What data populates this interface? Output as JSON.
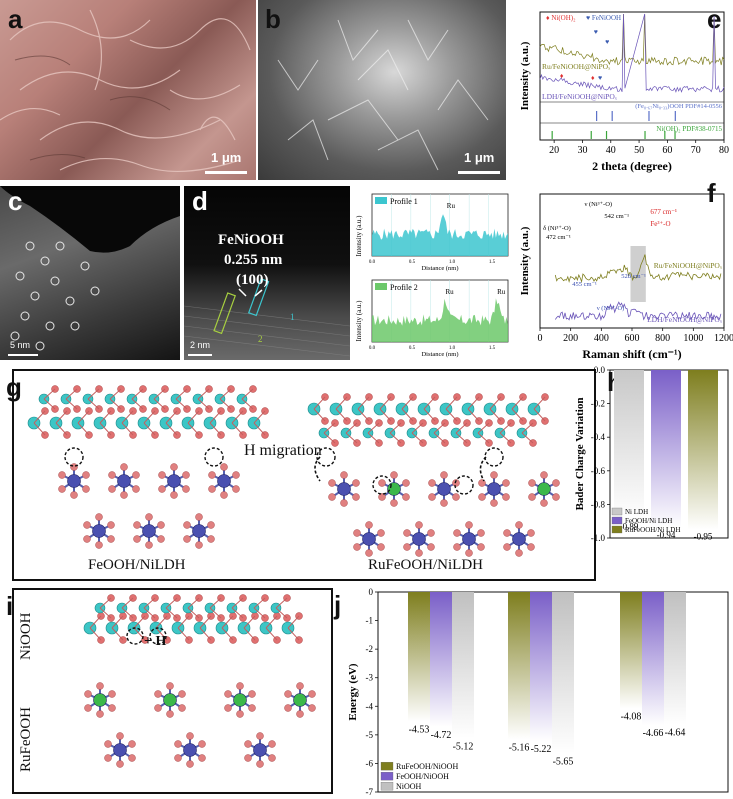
{
  "panels": {
    "a": {
      "label": "a",
      "scale": "1 μm"
    },
    "b": {
      "label": "b",
      "scale": "1 μm"
    },
    "c": {
      "label": "c",
      "scale": "5 nm"
    },
    "d": {
      "label": "d",
      "scale": "2 nm",
      "title": "FeNiOOH",
      "spacing": "0.255 nm",
      "plane": "(100)",
      "marker1": "1",
      "marker2": "2"
    },
    "e": {
      "label": "e"
    },
    "f": {
      "label": "f"
    },
    "g": {
      "label": "g",
      "left_caption": "FeOOH/NiLDH",
      "right_caption": "RuFeOOH/NiLDH",
      "migration": "H migration"
    },
    "h": {
      "label": "h"
    },
    "i": {
      "label": "i",
      "top": "NiOOH",
      "bottom": "RuFeOOH",
      "addH": "+ H"
    },
    "j": {
      "label": "j"
    }
  },
  "chart_data": [
    {
      "id": "profiles",
      "type": "line",
      "series": [
        {
          "name": "Profile 1",
          "color": "#3cc6cf",
          "annotations": [
            "Ru"
          ]
        },
        {
          "name": "Profile 2",
          "color": "#6cc86a",
          "annotations": [
            "Ru",
            "Ru"
          ]
        }
      ],
      "xlabel": "Distance (nm)",
      "ylabel": "Intensity (a.u.)",
      "xticks": [
        "0.0",
        "0.5",
        "1.0",
        "1.5"
      ],
      "xlim": [
        0,
        1.7
      ]
    },
    {
      "id": "xrd",
      "type": "line",
      "xlabel": "2 theta (degree)",
      "ylabel": "Intensity (a.u.)",
      "xlim": [
        15,
        80
      ],
      "xticks": [
        "20",
        "30",
        "40",
        "50",
        "60",
        "70",
        "80"
      ],
      "legend": [
        {
          "symbol": "♦",
          "text": "Ni(OH)₂",
          "color": "#e03030"
        },
        {
          "symbol": "♥",
          "text": "FeNiOOH",
          "color": "#3a5bb0"
        }
      ],
      "series": [
        {
          "name": "Ru/FeNiOOH@NiPOₓ",
          "color": "#7e7e1e"
        },
        {
          "name": "LDH/FeNiOOH@NiPOₓ",
          "color": "#6a55b8"
        }
      ],
      "references": [
        {
          "name": "(Fe₀.₆₇Ni₀.₃₃)OOH PDF#14-0556",
          "color": "#5a70c8",
          "peaks": [
            35.0,
            40.5,
            53.5,
            62.8
          ]
        },
        {
          "name": "Ni(OH)₂ PDF#38-0715",
          "color": "#3aa53a",
          "peaks": [
            19.3,
            33.1,
            38.5,
            52.1,
            59.1,
            62.7
          ]
        }
      ]
    },
    {
      "id": "raman",
      "type": "line",
      "xlabel": "Raman shift (cm⁻¹)",
      "ylabel": "Intensity (a.u.)",
      "xlim": [
        0,
        1200
      ],
      "xticks": [
        "0",
        "200",
        "400",
        "600",
        "800",
        "1000",
        "1200"
      ],
      "series": [
        {
          "name": "Ru/FeNiOOH@NiPOₓ",
          "color": "#7e7e1e"
        },
        {
          "name": "LDH/FeNiOOH@NiPOₓ",
          "color": "#6a55b8"
        }
      ],
      "annotations": {
        "delta": "δ (Ni³⁺-O)",
        "delta_val": "472 cm⁻¹",
        "nu": "ν (Ni³⁺-O)",
        "nu_val": "542 cm⁻¹",
        "fe_val": "677 cm⁻¹",
        "fe": "Fe³⁺-O",
        "l455": "455 cm⁻¹",
        "l528": "528 cm⁻¹",
        "nu2": "ν (Ni²⁺-O)"
      }
    },
    {
      "id": "bader",
      "type": "bar",
      "ylabel": "Bader Charge Variation",
      "ylim": [
        -1.0,
        0.0
      ],
      "yticks": [
        "0.0",
        "-0.2",
        "-0.4",
        "-0.6",
        "-0.8",
        "-1.0"
      ],
      "categories": [
        "Ni LDH",
        "FeOOH/Ni LDH",
        "RuFeOOH/Ni LDH"
      ],
      "values": [
        -0.89,
        -0.94,
        -0.95
      ],
      "labels": [
        "-0.89",
        "-0.94",
        "-0.95"
      ],
      "colors": [
        "#c8c8c8",
        "#7a5fc8",
        "#7e7e1e"
      ]
    },
    {
      "id": "energy",
      "type": "bar",
      "ylabel": "Energy (eV)",
      "ylim": [
        -7,
        0
      ],
      "yticks": [
        "0",
        "-1",
        "-2",
        "-3",
        "-4",
        "-5",
        "-6",
        "-7"
      ],
      "series": [
        {
          "name": "RuFeOOH/NiOOH",
          "color": "#7e7e1e",
          "values": [
            -4.53,
            -5.16,
            -4.08
          ]
        },
        {
          "name": "FeOOH/NiOOH",
          "color": "#7a5fc8",
          "values": [
            -4.72,
            -5.22,
            -4.66
          ]
        },
        {
          "name": "NiOOH",
          "color": "#c0c0c0",
          "values": [
            -5.12,
            -5.65,
            -4.64
          ]
        }
      ],
      "labels": [
        [
          "-4.53",
          "-4.72",
          "-5.12"
        ],
        [
          "-5.16",
          "-5.22",
          "-5.65"
        ],
        [
          "-4.08",
          "-4.66",
          "-4.64"
        ]
      ]
    }
  ]
}
